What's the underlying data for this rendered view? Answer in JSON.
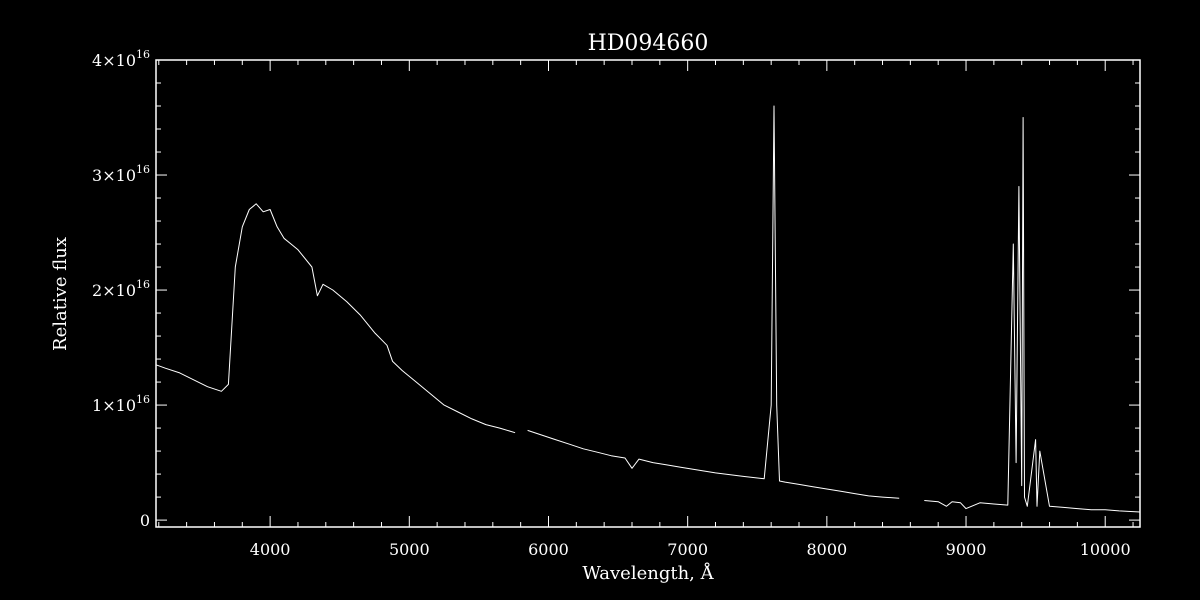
{
  "chart_data": {
    "type": "line",
    "title": "HD094660",
    "xlabel": "Wavelength, Å",
    "ylabel": "Relative flux",
    "xlim": [
      3180,
      10250
    ],
    "ylim": [
      -600000000000000.0,
      4e+16
    ],
    "xticks": [
      {
        "value": 4000,
        "label": "4000"
      },
      {
        "value": 5000,
        "label": "5000"
      },
      {
        "value": 6000,
        "label": "6000"
      },
      {
        "value": 7000,
        "label": "7000"
      },
      {
        "value": 8000,
        "label": "8000"
      },
      {
        "value": 9000,
        "label": "9000"
      },
      {
        "value": 10000,
        "label": "10000"
      }
    ],
    "yticks": [
      {
        "value": 0,
        "label": "0",
        "exp": ""
      },
      {
        "value": 1e+16,
        "label": "1×10",
        "exp": "16"
      },
      {
        "value": 2e+16,
        "label": "2×10",
        "exp": "16"
      },
      {
        "value": 3e+16,
        "label": "3×10",
        "exp": "16"
      },
      {
        "value": 4e+16,
        "label": "4×10",
        "exp": "16"
      }
    ],
    "grid": false,
    "series": [
      {
        "segments": [
          {
            "x": [
              3180,
              3250,
              3350,
              3450,
              3550,
              3650,
              3700,
              3750,
              3800,
              3850,
              3900,
              3950,
              4000,
              4050,
              4100,
              4150,
              4200,
              4300,
              4340,
              4380,
              4450,
              4550,
              4650,
              4750,
              4840,
              4880,
              4950,
              5050,
              5150,
              5250,
              5350,
              5450,
              5550,
              5650,
              5760
            ],
            "y": [
              1.35e+16,
              1.32e+16,
              1.28e+16,
              1.22e+16,
              1.16e+16,
              1.12e+16,
              1.18e+16,
              2.2e+16,
              2.55e+16,
              2.7e+16,
              2.75e+16,
              2.68e+16,
              2.7e+16,
              2.55e+16,
              2.45e+16,
              2.4e+16,
              2.35e+16,
              2.2e+16,
              1.95e+16,
              2.05e+16,
              2e+16,
              1.9e+16,
              1.78e+16,
              1.63e+16,
              1.52e+16,
              1.38e+16,
              1.3e+16,
              1.2e+16,
              1.1e+16,
              1e+16,
              9400000000000000.0,
              8800000000000000.0,
              8300000000000000.0,
              8000000000000000.0,
              7600000000000000.0
            ]
          },
          {
            "x": [
              5850,
              5950,
              6050,
              6150,
              6250,
              6350,
              6450,
              6550,
              6600,
              6650,
              6750,
              6850,
              6950,
              7050,
              7200,
              7400,
              7550,
              7600,
              7620,
              7640,
              7660,
              7700,
              7800,
              7900,
              8000,
              8100,
              8200,
              8300,
              8400,
              8520
            ],
            "y": [
              7800000000000000.0,
              7400000000000000.0,
              7000000000000000.0,
              6600000000000000.0,
              6200000000000000.0,
              5900000000000000.0,
              5600000000000000.0,
              5400000000000000.0,
              4500000000000000.0,
              5300000000000000.0,
              5000000000000000.0,
              4800000000000000.0,
              4600000000000000.0,
              4400000000000000.0,
              4100000000000000.0,
              3800000000000000.0,
              3600000000000000.0,
              1e+16,
              3.6e+16,
              1e+16,
              3400000000000000.0,
              3300000000000000.0,
              3100000000000000.0,
              2900000000000000.0,
              2700000000000000.0,
              2500000000000000.0,
              2300000000000000.0,
              2100000000000000.0,
              2000000000000000.0,
              1900000000000000.0
            ]
          },
          {
            "x": [
              8700,
              8800,
              8860,
              8900,
              8960,
              9000,
              9100,
              9200,
              9300,
              9340,
              9360,
              9380,
              9400,
              9410,
              9420,
              9440,
              9500,
              9510,
              9530,
              9600,
              9700,
              9800,
              9900,
              10000,
              10100,
              10250
            ],
            "y": [
              1700000000000000.0,
              1600000000000000.0,
              1200000000000000.0,
              1600000000000000.0,
              1500000000000000.0,
              1000000000000000.0,
              1500000000000000.0,
              1400000000000000.0,
              1300000000000000.0,
              2.4e+16,
              5000000000000000.0,
              2.9e+16,
              3000000000000000.0,
              3.5e+16,
              2000000000000000.0,
              1200000000000000.0,
              7000000000000000.0,
              1200000000000000.0,
              6000000000000000.0,
              1200000000000000.0,
              1100000000000000.0,
              1000000000000000.0,
              900000000000000.0,
              900000000000000.0,
              800000000000000.0,
              700000000000000.0
            ]
          }
        ]
      }
    ]
  }
}
